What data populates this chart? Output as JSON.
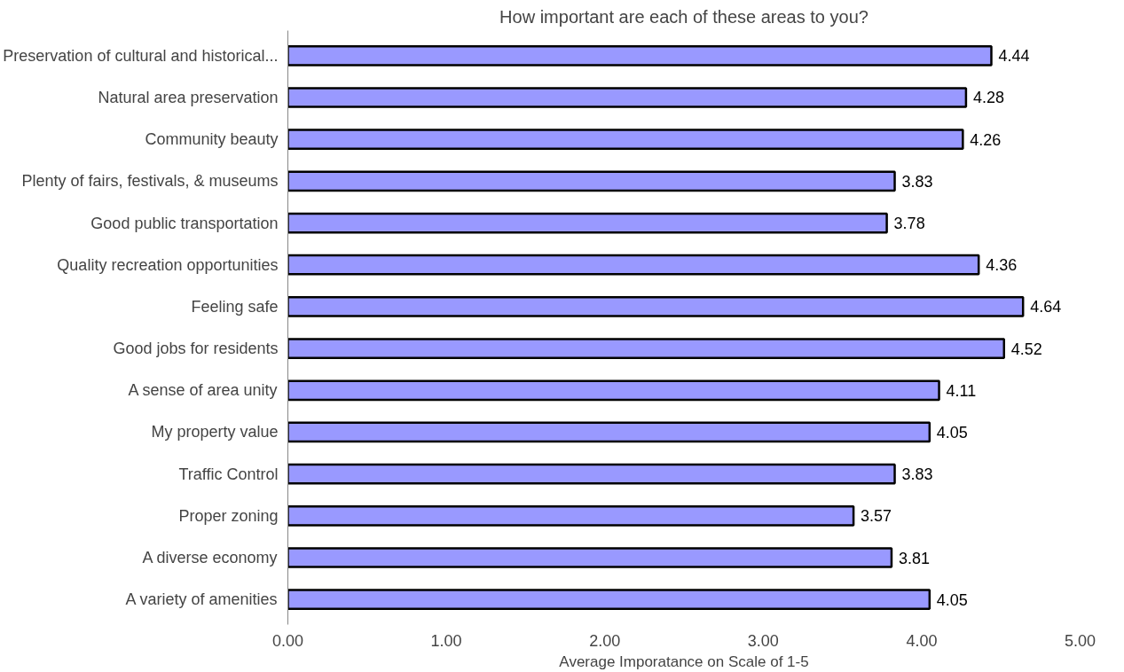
{
  "chart_data": {
    "type": "bar",
    "orientation": "horizontal",
    "title": "How important are each of these areas to you?",
    "xlabel": "Average Imporatance on Scale of 1-5",
    "categories": [
      "Preservation of cultural and historical...",
      "Natural area preservation",
      "Community beauty",
      "Plenty of fairs, festivals, & museums",
      "Good public transportation",
      "Quality recreation opportunities",
      "Feeling safe",
      "Good jobs for residents",
      "A sense of area unity",
      "My property value",
      "Traffic Control",
      "Proper zoning",
      "A diverse economy",
      "A variety of amenities"
    ],
    "values": [
      4.44,
      4.28,
      4.26,
      3.83,
      3.78,
      4.36,
      4.64,
      4.52,
      4.11,
      4.05,
      3.83,
      3.57,
      3.81,
      4.05
    ],
    "color": "#9999ff",
    "xlim": [
      0,
      5
    ],
    "xticks": [
      {
        "value": 0,
        "label": "0.00"
      },
      {
        "value": 1,
        "label": "1.00"
      },
      {
        "value": 2,
        "label": "2.00"
      },
      {
        "value": 3,
        "label": "3.00"
      },
      {
        "value": 4,
        "label": "4.00"
      },
      {
        "value": 5,
        "label": "5.00"
      }
    ],
    "data_labels": true,
    "grid": false
  }
}
